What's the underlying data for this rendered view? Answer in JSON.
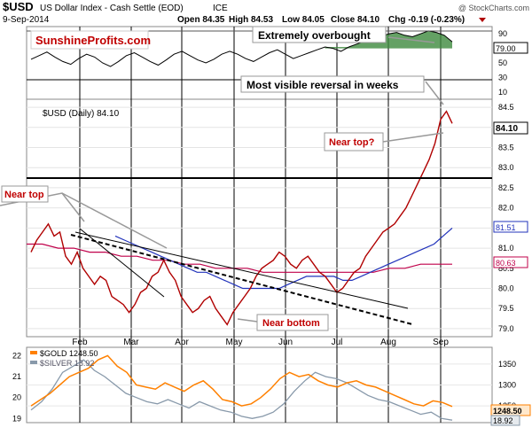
{
  "header": {
    "symbol": "$USD",
    "name": "US Dollar Index - Cash Settle (EOD)",
    "exchange": "ICE",
    "date": "9-Sep-2014",
    "open": "Open 84.35",
    "high": "High 84.53",
    "low": "Low 84.05",
    "close": "Close 84.10",
    "chg": "Chg -0.19 (-0.23%)",
    "watermark": "@ StockCharts.com"
  },
  "brand": "SunshineProfits.com",
  "annotations": {
    "overbought": "Extremely overbought",
    "reversal": "Most visible reversal in weeks",
    "near_top_left": "Near top",
    "near_top_right": "Near top?",
    "near_bottom": "Near bottom"
  },
  "price_panel": {
    "legend": "$USD (Daily) 84.10",
    "last_label": "84.10",
    "ma_fast_label": "81.51",
    "ma_slow_label": "80.63"
  },
  "rsi_panel": {
    "last_label": "79.00"
  },
  "bottom_panel": {
    "gold_legend": "$GOLD 1248.50",
    "silver_legend": "$SILVER 18.92",
    "gold_label": "1248.50",
    "silver_label": "18.92"
  },
  "colors": {
    "price": "#b00000",
    "ma_fast": "#2233bb",
    "ma_slow": "#c0004a",
    "gold": "#ff8000",
    "silver": "#8899aa",
    "annotation_red": "#c00000"
  },
  "chart_data": [
    {
      "type": "line",
      "title": "$USD (Daily)",
      "x_ticks": [
        "Feb",
        "Mar",
        "Apr",
        "May",
        "Jun",
        "Jul",
        "Aug",
        "Sep"
      ],
      "y_ticks": [
        79.0,
        79.5,
        80.0,
        80.5,
        81.0,
        81.5,
        82.0,
        82.5,
        83.0,
        83.5,
        84.0,
        84.5
      ],
      "ylim": [
        78.8,
        84.7
      ],
      "series": [
        {
          "name": "",
          "values": [
            80.9,
            81.2,
            81.4,
            81.6,
            81.3,
            81.4,
            80.8,
            80.6,
            80.9,
            80.5,
            80.3,
            80.1,
            80.3,
            80.2,
            79.8,
            79.7,
            79.6,
            79.4,
            79.6,
            79.9,
            80.0,
            80.3,
            80.4,
            80.7,
            80.4,
            80.2,
            79.8,
            79.6,
            79.4,
            79.5,
            79.7,
            79.8,
            79.5,
            79.3,
            79.1,
            79.4,
            79.6,
            79.8,
            80.0,
            80.3,
            80.5,
            80.6,
            80.7,
            80.9,
            80.8,
            80.6,
            80.5,
            80.7,
            80.8,
            80.6,
            80.4,
            80.3,
            80.1,
            79.9,
            80.0,
            80.2,
            80.4,
            80.5,
            80.8,
            81.0,
            81.2,
            81.4,
            81.5,
            81.6,
            81.8,
            82.0,
            82.3,
            82.6,
            82.9,
            83.2,
            83.6,
            84.2,
            84.4,
            84.1
          ]
        },
        {
          "name": "",
          "values": [
            81.3,
            81.2,
            81.1,
            81.0,
            80.9,
            80.8,
            80.7,
            80.6,
            80.5,
            80.4,
            80.4,
            80.3,
            80.2,
            80.1,
            80.0,
            80.0,
            80.0,
            80.0,
            80.0,
            80.1,
            80.2,
            80.3,
            80.3,
            80.3,
            80.3,
            80.2,
            80.2,
            80.3,
            80.4,
            80.5,
            80.6,
            80.7,
            80.8,
            80.9,
            81.0,
            81.1,
            81.3,
            81.5
          ]
        },
        {
          "name": "",
          "values": [
            81.1,
            81.1,
            81.0,
            81.0,
            80.9,
            80.9,
            80.8,
            80.8,
            80.7,
            80.7,
            80.6,
            80.6,
            80.5,
            80.5,
            80.5,
            80.4,
            80.4,
            80.4,
            80.4,
            80.4,
            80.4,
            80.4,
            80.4,
            80.5,
            80.5,
            80.6,
            80.6,
            80.6
          ]
        }
      ]
    },
    {
      "type": "line",
      "title": "",
      "y_ticks": [
        10,
        30,
        50,
        70,
        90
      ],
      "ylim": [
        0,
        100
      ],
      "series": [
        {
          "name": "",
          "values": [
            55,
            60,
            65,
            58,
            52,
            48,
            56,
            62,
            58,
            50,
            45,
            52,
            60,
            64,
            58,
            52,
            47,
            54,
            62,
            66,
            60,
            54,
            50,
            55,
            62,
            66,
            62,
            56,
            52,
            58,
            64,
            68,
            62,
            56,
            60,
            64,
            68,
            72,
            70,
            66,
            72,
            76,
            80,
            84,
            86,
            90,
            92,
            88,
            86,
            90,
            94,
            92,
            88,
            79
          ]
        }
      ]
    },
    {
      "type": "line",
      "title": "",
      "series": [
        {
          "name": "$GOLD",
          "values": [
            1250,
            1265,
            1280,
            1300,
            1320,
            1330,
            1340,
            1360,
            1370,
            1345,
            1330,
            1300,
            1295,
            1290,
            1305,
            1295,
            1285,
            1300,
            1310,
            1290,
            1265,
            1260,
            1250,
            1255,
            1270,
            1290,
            1315,
            1330,
            1320,
            1325,
            1310,
            1300,
            1295,
            1305,
            1310,
            1300,
            1295,
            1285,
            1275,
            1265,
            1255,
            1250,
            1262,
            1258,
            1248.5
          ]
        },
        {
          "name": "$SILVER",
          "values": [
            19.4,
            19.8,
            20.4,
            21.2,
            21.5,
            21.8,
            21.3,
            21.0,
            20.6,
            20.2,
            20.0,
            19.8,
            19.7,
            19.9,
            19.7,
            19.5,
            19.8,
            19.6,
            19.4,
            19.3,
            19.1,
            19.0,
            19.1,
            19.3,
            19.7,
            20.3,
            20.8,
            21.2,
            21.0,
            20.9,
            20.7,
            20.4,
            20.1,
            19.9,
            19.8,
            19.6,
            19.4,
            19.2,
            19.3,
            19.0,
            18.92
          ]
        }
      ],
      "y_ticks_left": [
        19,
        20,
        21,
        22
      ],
      "y_ticks_right": [
        1250,
        1300,
        1350
      ],
      "ylim_left": [
        18.8,
        22.4
      ],
      "ylim_right": [
        1210,
        1390
      ]
    }
  ]
}
